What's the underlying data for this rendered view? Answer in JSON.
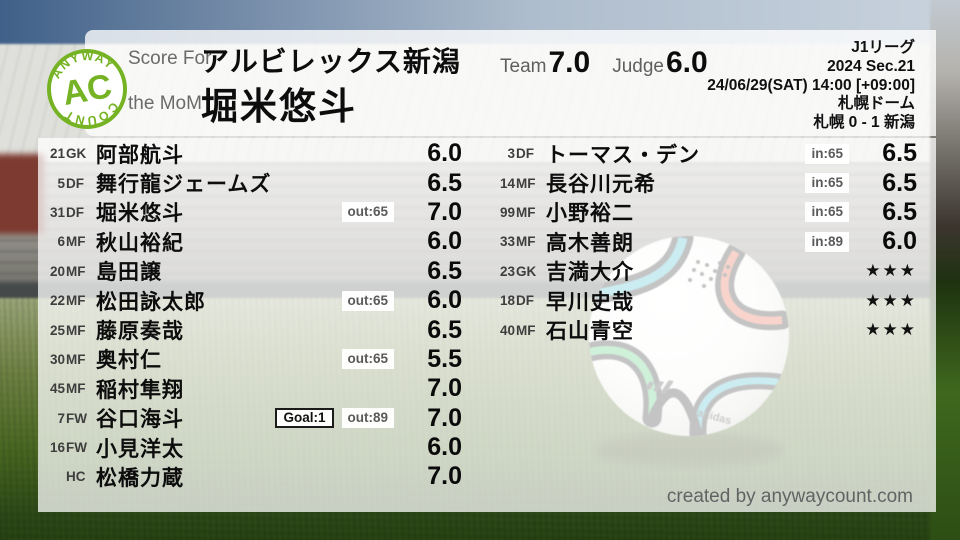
{
  "logo": {
    "top_text": "ANYWAY",
    "main_text": "AC",
    "bottom_text": "COUNT",
    "green": "#76b324"
  },
  "header": {
    "score_for_label": "Score For",
    "team_name": "アルビレックス新潟",
    "mom_label": "the MoM",
    "mom_name": "堀米悠斗",
    "team_label": "Team",
    "team_score": "7.0",
    "judge_label": "Judge",
    "judge_score": "6.0",
    "match_info": {
      "league": "J1リーグ",
      "season": "2024 Sec.21",
      "datetime": "24/06/29(SAT) 14:00 [+09:00]",
      "venue": "札幌ドーム",
      "result": "札幌 0 - 1 新潟"
    }
  },
  "players_left": [
    {
      "num": "21",
      "pos": "GK",
      "name": "阿部航斗",
      "badges": [],
      "score": "6.0"
    },
    {
      "num": "5",
      "pos": "DF",
      "name": "舞行龍ジェームズ",
      "badges": [],
      "score": "6.5"
    },
    {
      "num": "31",
      "pos": "DF",
      "name": "堀米悠斗",
      "badges": [
        {
          "type": "sub",
          "label": "out:65"
        }
      ],
      "score": "7.0"
    },
    {
      "num": "6",
      "pos": "MF",
      "name": "秋山裕紀",
      "badges": [],
      "score": "6.0"
    },
    {
      "num": "20",
      "pos": "MF",
      "name": "島田譲",
      "badges": [],
      "score": "6.5"
    },
    {
      "num": "22",
      "pos": "MF",
      "name": "松田詠太郎",
      "badges": [
        {
          "type": "sub",
          "label": "out:65"
        }
      ],
      "score": "6.0"
    },
    {
      "num": "25",
      "pos": "MF",
      "name": "藤原奏哉",
      "badges": [],
      "score": "6.5"
    },
    {
      "num": "30",
      "pos": "MF",
      "name": "奥村仁",
      "badges": [
        {
          "type": "sub",
          "label": "out:65"
        }
      ],
      "score": "5.5"
    },
    {
      "num": "45",
      "pos": "MF",
      "name": "稲村隼翔",
      "badges": [],
      "score": "7.0"
    },
    {
      "num": "7",
      "pos": "FW",
      "name": "谷口海斗",
      "badges": [
        {
          "type": "goal",
          "label": "Goal:1"
        },
        {
          "type": "sub",
          "label": "out:89"
        }
      ],
      "score": "7.0"
    },
    {
      "num": "16",
      "pos": "FW",
      "name": "小見洋太",
      "badges": [],
      "score": "6.0"
    },
    {
      "num": "",
      "pos": "HC",
      "name": "松橋力蔵",
      "badges": [],
      "score": "7.0"
    }
  ],
  "players_right": [
    {
      "num": "3",
      "pos": "DF",
      "name": "トーマス・デン",
      "badges": [
        {
          "type": "sub",
          "label": "in:65"
        }
      ],
      "score": "6.5"
    },
    {
      "num": "14",
      "pos": "MF",
      "name": "長谷川元希",
      "badges": [
        {
          "type": "sub",
          "label": "in:65"
        }
      ],
      "score": "6.5"
    },
    {
      "num": "99",
      "pos": "MF",
      "name": "小野裕二",
      "badges": [
        {
          "type": "sub",
          "label": "in:65"
        }
      ],
      "score": "6.5"
    },
    {
      "num": "33",
      "pos": "MF",
      "name": "高木善朗",
      "badges": [
        {
          "type": "sub",
          "label": "in:89"
        }
      ],
      "score": "6.0"
    },
    {
      "num": "23",
      "pos": "GK",
      "name": "吉満大介",
      "badges": [],
      "score": "★★★"
    },
    {
      "num": "18",
      "pos": "DF",
      "name": "早川史哉",
      "badges": [],
      "score": "★★★"
    },
    {
      "num": "40",
      "pos": "MF",
      "name": "石山青空",
      "badges": [],
      "score": "★★★"
    }
  ],
  "footer": {
    "credit": "created by anywaycount.com"
  },
  "colors": {
    "logo_green": "#76b324",
    "text_black": "#0d0d0d",
    "label_gray": "#5f5f5f",
    "badge_bg": "#ffffff"
  }
}
